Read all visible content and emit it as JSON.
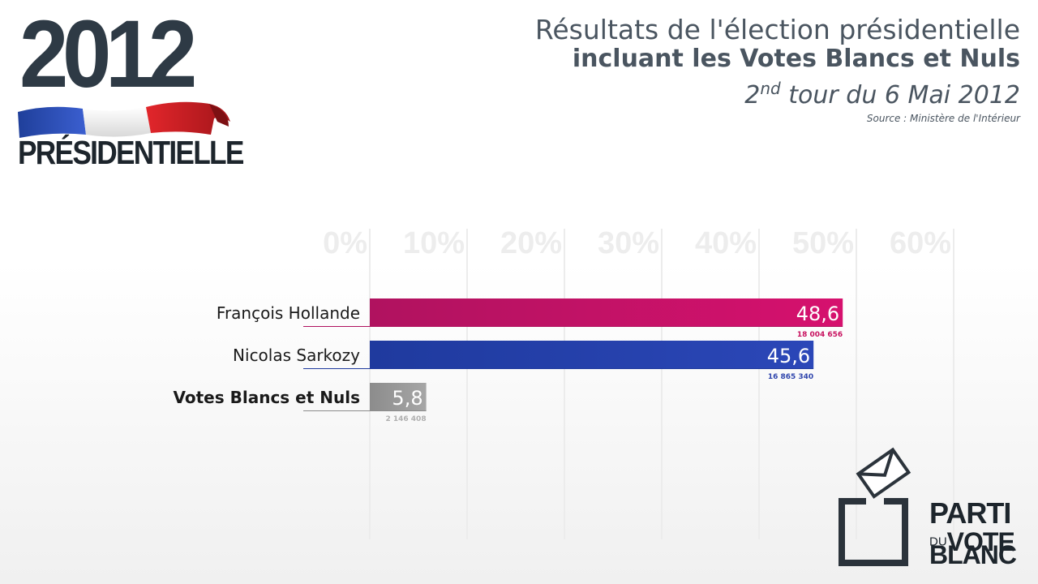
{
  "logo": {
    "year": "2012",
    "word": "PRÉSIDENTIELLE"
  },
  "header": {
    "title_line1": "Résultats de l'élection présidentielle",
    "title_line2": "incluant les Votes Blancs et Nuls",
    "subtitle_ordinal": "2",
    "subtitle_suffix": "nd",
    "subtitle_rest": " tour du 6 Mai 2012",
    "source": "Source : Ministère de l'Intérieur"
  },
  "chart_data": {
    "type": "bar",
    "orientation": "horizontal",
    "xlim": [
      0,
      60
    ],
    "x_ticks": [
      "0%",
      "10%",
      "20%",
      "30%",
      "40%",
      "50%",
      "60%"
    ],
    "grid": true,
    "categories": [
      "François Hollande",
      "Nicolas Sarkozy",
      "Votes Blancs et Nuls"
    ],
    "values": [
      48.6,
      45.6,
      5.8
    ],
    "value_labels": [
      "48,6",
      "45,6",
      "5,8"
    ],
    "vote_counts": [
      "18 004 656",
      "16 865 340",
      "2 146 408"
    ],
    "colors": [
      "#d6116e",
      "#2b47b8",
      "#a6a6a6"
    ],
    "colors_dark": [
      "#b0125f",
      "#1f3a9e",
      "#8c8c8c"
    ],
    "count_colors": [
      "#c8115f",
      "#3046ad",
      "#b0b0b0"
    ]
  },
  "party_logo": {
    "line1": "PARTI",
    "line2_small": "DU",
    "line2_big": "VOTE",
    "line3": "BLANC"
  }
}
